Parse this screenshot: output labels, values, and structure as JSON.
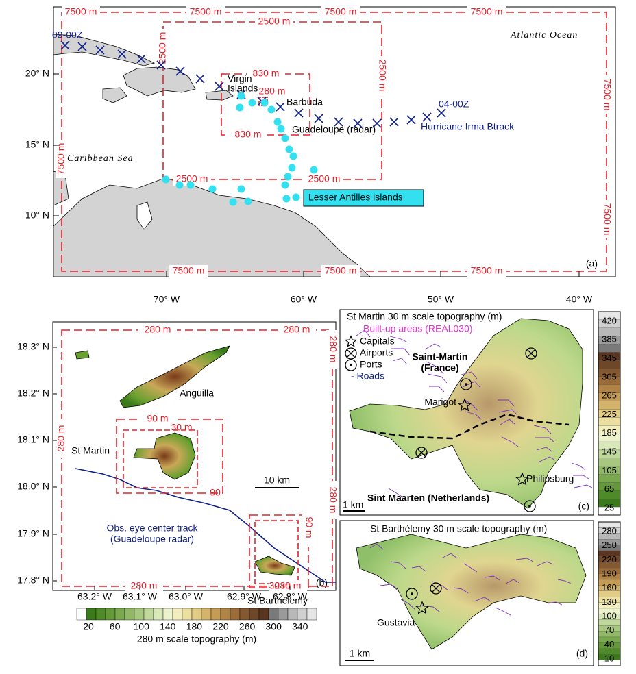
{
  "panel_a": {
    "lat_labels": [
      "20° N",
      "15° N",
      "10° N"
    ],
    "lon_labels": [
      "70° W",
      "60° W",
      "50° W",
      "40° W"
    ],
    "domain_7500": "7500 m",
    "domain_2500": "2500 m",
    "domain_830": "830 m",
    "domain_280": "280 m",
    "track_start": "09-00Z",
    "track_end": "04-00Z",
    "track_name": "Hurricane Irma Btrack",
    "ocean": "Atlantic Ocean",
    "sea": "Caribbean Sea",
    "virgin_islands": [
      "Virgin",
      "Islands"
    ],
    "barbuda": "Barbuda",
    "guadeloupe": "Guadeloupe (radar)",
    "antilles": "Lesser Antilles islands",
    "panel_label": "(a)"
  },
  "panel_b": {
    "lat_labels": [
      "18.3° N",
      "18.2° N",
      "18.1° N",
      "18.0° N",
      "17.9° N",
      "17.8° N"
    ],
    "lon_labels": [
      "63.2° W",
      "63.1° W",
      "63.0° W",
      "62.9° W",
      "62.8° W"
    ],
    "domain_280": "280 m",
    "domain_90": "90 m",
    "domain_90_short": "90",
    "domain_30": "30 m",
    "anguilla": "Anguilla",
    "st_martin": "St Martin",
    "st_barthelemy": "St Barthélemy",
    "scale": "10 km",
    "track_label": [
      "Obs. eye center track",
      "(Guadeloupe radar)"
    ],
    "panel_label": "(b)",
    "colorbar": {
      "ticks": [
        20,
        60,
        100,
        140,
        180,
        220,
        260,
        300,
        340
      ],
      "title": "280 m scale topography (m)"
    }
  },
  "panel_c": {
    "title": "St Martin 30 m scale topography (m)",
    "built_up": "Built-up areas (REAL030)",
    "legend": [
      "Capitals",
      "Airports",
      "Ports",
      "- Roads"
    ],
    "french_side": [
      "Saint-Martin",
      "(France)"
    ],
    "marigot": "Marigot",
    "philipsburg": "Philipsburg",
    "dutch_side": "Sint Maarten (Netherlands)",
    "scale": "1 km",
    "panel_label": "(c)",
    "colorbar_ticks": [
      420,
      385,
      345,
      305,
      265,
      225,
      185,
      145,
      105,
      65,
      25
    ]
  },
  "panel_d": {
    "title": "St Barthélemy 30 m scale topography (m)",
    "gustavia": "Gustavia",
    "scale": "1 km",
    "panel_label": "(d)",
    "colorbar_ticks": [
      280,
      250,
      220,
      190,
      160,
      130,
      100,
      70,
      40,
      10
    ]
  }
}
